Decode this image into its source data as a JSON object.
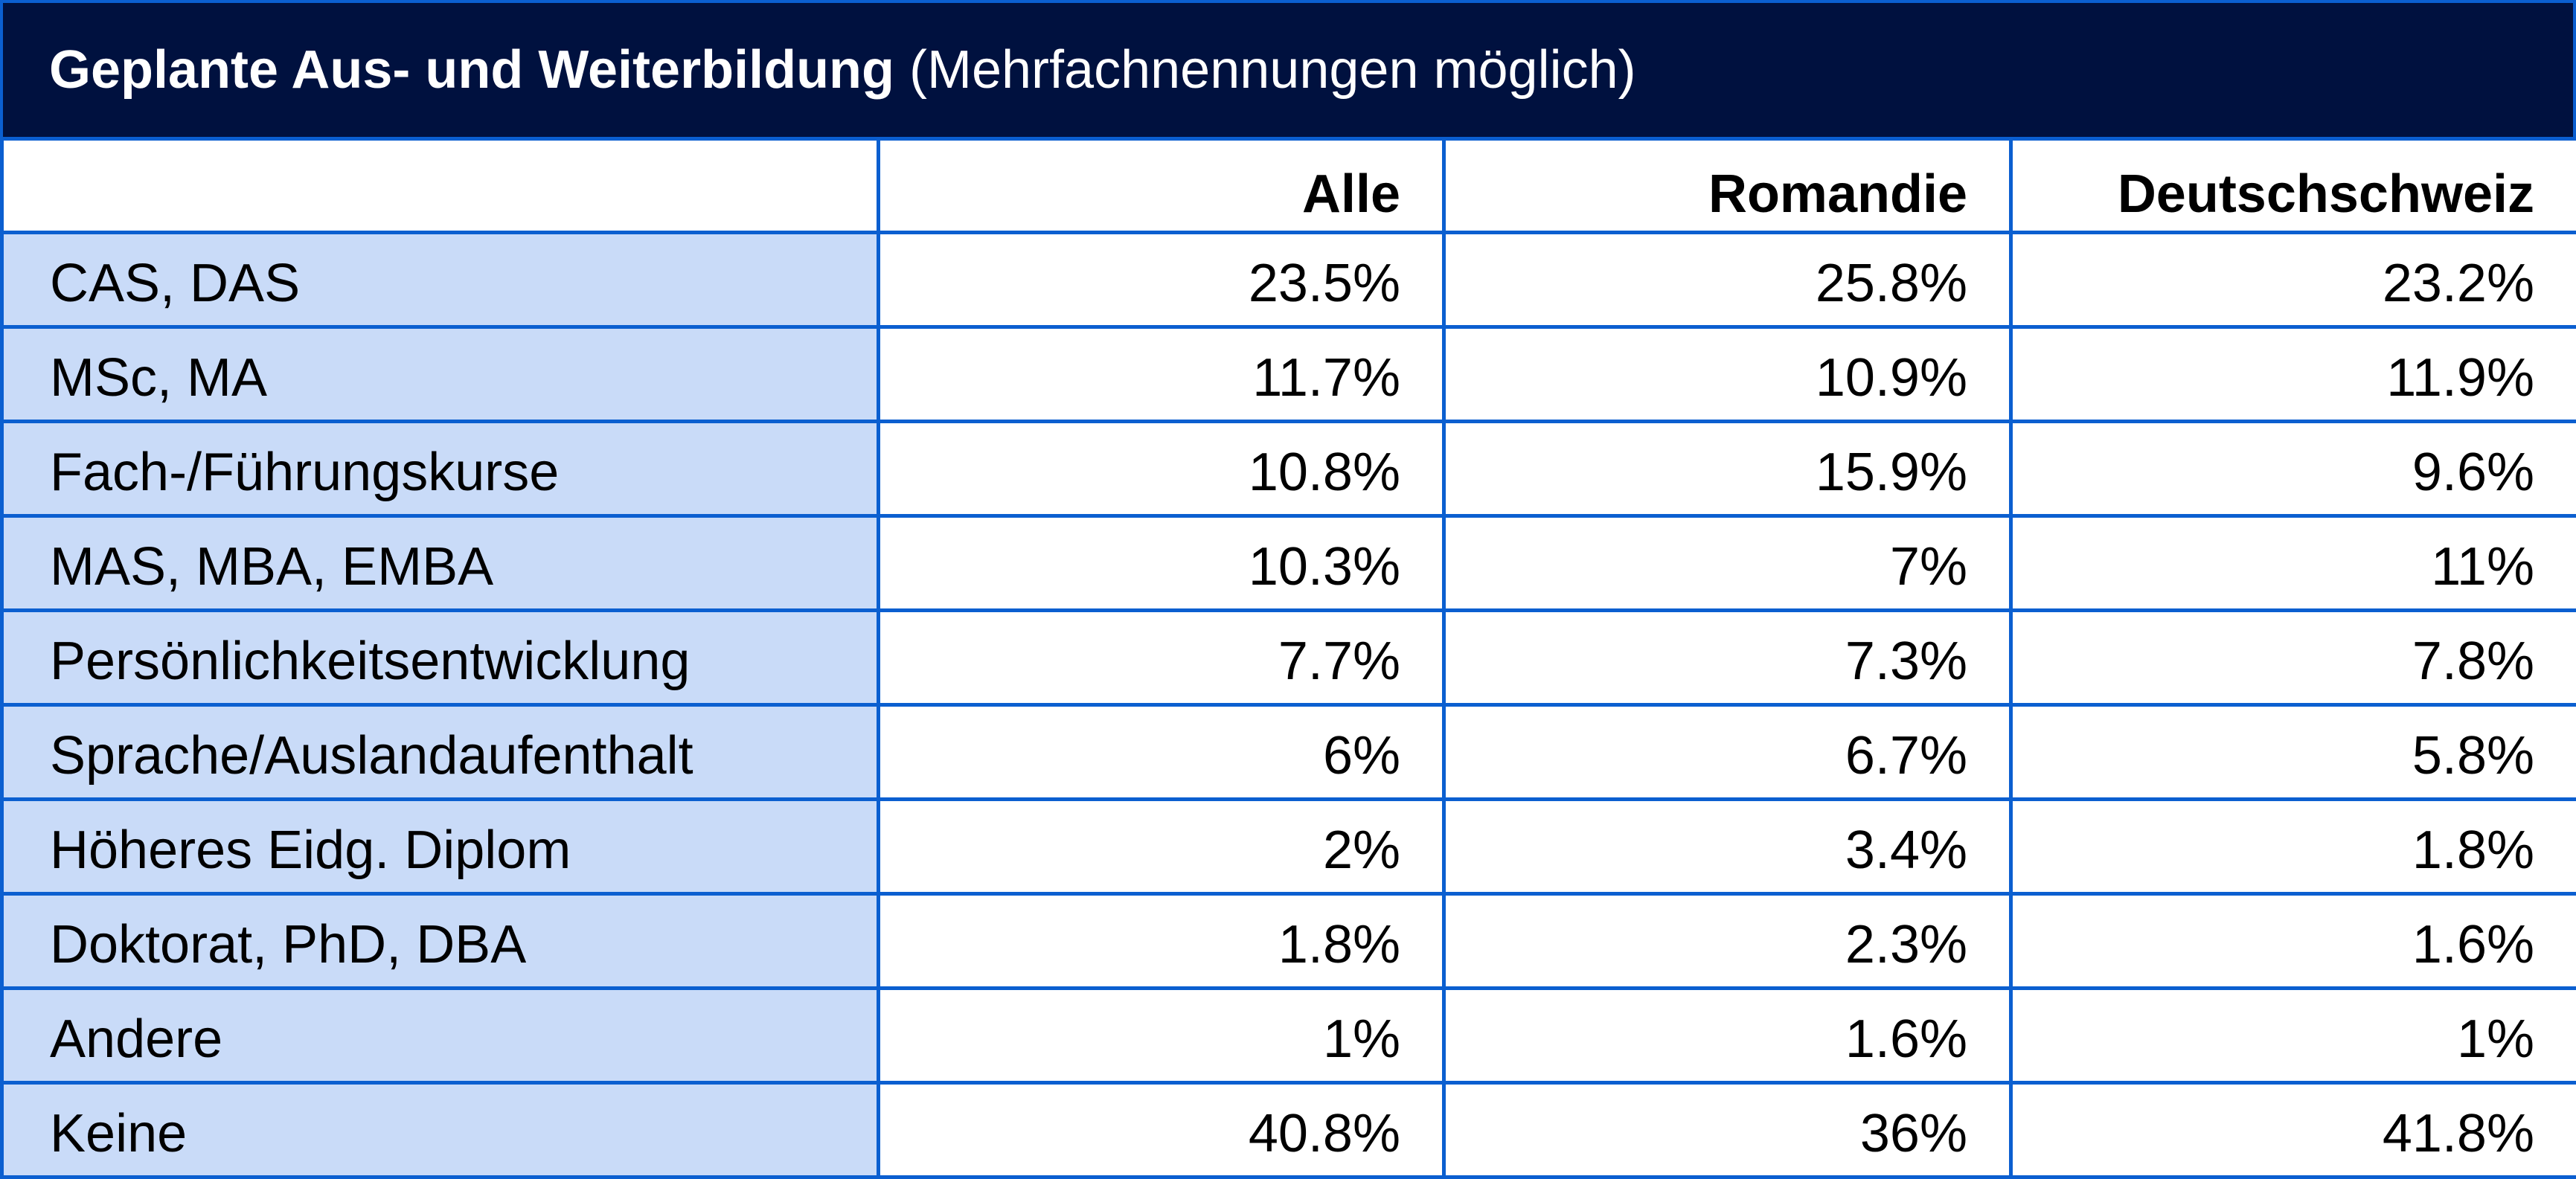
{
  "colors": {
    "title_background": "#00113f",
    "grid_lines": "#0b5fd0",
    "label_column_background": "#c9dbf8",
    "text": "#000000",
    "title_text": "#ffffff"
  },
  "title": {
    "main": "Geplante Aus- und Weiterbildung",
    "sub": "(Mehrfachnennungen möglich)"
  },
  "chart_data": {
    "type": "table",
    "title": "Geplante Aus- und Weiterbildung",
    "subtitle": "(Mehrfachnennungen möglich)",
    "columns": [
      "",
      "Alle",
      "Romandie",
      "Deutschschweiz"
    ],
    "rows": [
      {
        "label": "CAS, DAS",
        "values": [
          "23.5%",
          "25.8%",
          "23.2%"
        ]
      },
      {
        "label": "MSc, MA",
        "values": [
          "11.7%",
          "10.9%",
          "11.9%"
        ]
      },
      {
        "label": "Fach-/Führungskurse",
        "values": [
          "10.8%",
          "15.9%",
          "9.6%"
        ]
      },
      {
        "label": "MAS, MBA, EMBA",
        "values": [
          "10.3%",
          "7%",
          "11%"
        ]
      },
      {
        "label": "Persönlichkeitsentwicklung",
        "values": [
          "7.7%",
          "7.3%",
          "7.8%"
        ]
      },
      {
        "label": "Sprache/Auslandaufenthalt",
        "values": [
          "6%",
          "6.7%",
          "5.8%"
        ]
      },
      {
        "label": "Höheres Eidg. Diplom",
        "values": [
          "2%",
          "3.4%",
          "1.8%"
        ]
      },
      {
        "label": "Doktorat, PhD, DBA",
        "values": [
          "1.8%",
          "2.3%",
          "1.6%"
        ]
      },
      {
        "label": "Andere",
        "values": [
          "1%",
          "1.6%",
          "1%"
        ]
      },
      {
        "label": "Keine",
        "values": [
          "40.8%",
          "36%",
          "41.8%"
        ]
      }
    ]
  }
}
